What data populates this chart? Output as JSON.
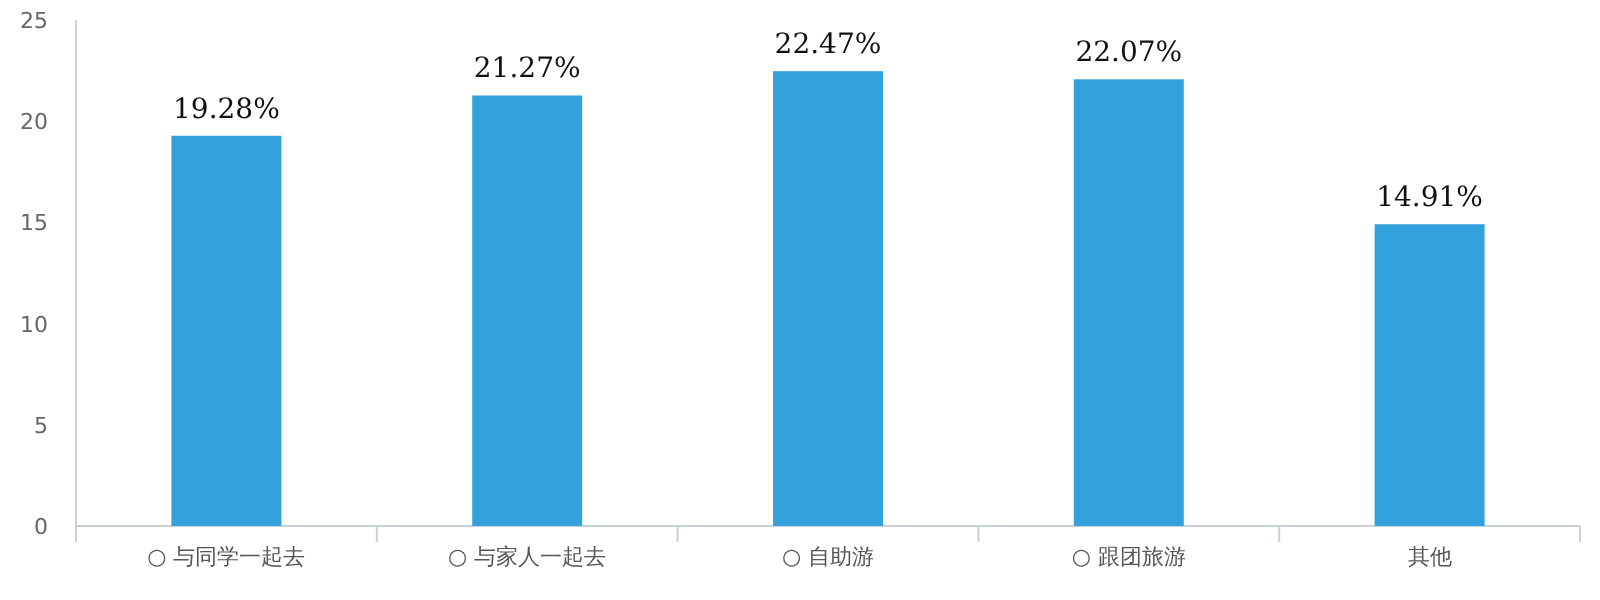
{
  "chart_data": {
    "type": "bar",
    "categories": [
      "○ 与同学一起去",
      "○ 与家人一起去",
      "○ 自助游",
      "○ 跟团旅游",
      "其他"
    ],
    "values": [
      19.28,
      21.27,
      22.47,
      22.07,
      14.91
    ],
    "value_labels": [
      "19.28%",
      "21.27%",
      "22.47%",
      "22.07%",
      "14.91%"
    ],
    "color": "#33a1db",
    "ylim": [
      0,
      25
    ],
    "yticks": [
      0,
      5,
      10,
      15,
      20,
      25
    ],
    "grid": false
  }
}
